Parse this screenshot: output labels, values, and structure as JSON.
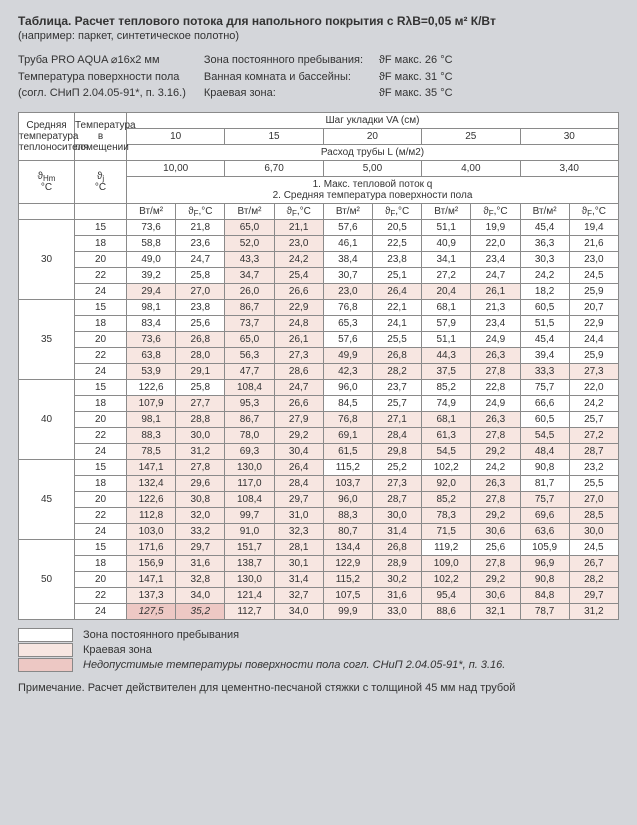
{
  "title": "Таблица.   Расчет теплового потока  для напольного покрытия с RλB=0,05 м² К/Вт",
  "subtitle": "(например: паркет, синтетическое полотно)",
  "specs_left": [
    "Труба PRO AQUA ⌀16x2 мм",
    "Температура поверхности пола",
    "(согл. СНиП 2.04.05-91*, п. 3.16.)"
  ],
  "zones": [
    {
      "label": "Зона постоянного пребывания:",
      "value": "ϑF  макс. 26 °C"
    },
    {
      "label": "Ванная комната и бассейны:",
      "value": "ϑF  макс. 31 °C"
    },
    {
      "label": "Краевая зона:",
      "value": "ϑF  макс. 35 °C"
    }
  ],
  "header": {
    "col_a": "Средняя температура теплоносителя",
    "col_b": "Температура в помещении",
    "pitch_title": "Шаг укладки VA (см)",
    "pitches": [
      "10",
      "15",
      "20",
      "25",
      "30"
    ],
    "flow_title": "Расход трубы L (м/м2)",
    "flows": [
      "10,00",
      "6,70",
      "5,00",
      "4,00",
      "3,40"
    ],
    "mid_text": "1. Макс. тепловой поток q\n2. Средняя температура поверхности пола",
    "sym_a": "ϑHm °C",
    "sym_b": "ϑj °C",
    "unit_a": "Вт/м²",
    "unit_b": "ϑF,°C"
  },
  "thm": [
    "30",
    "35",
    "40",
    "45",
    "50"
  ],
  "ti": [
    "15",
    "18",
    "20",
    "22",
    "24"
  ],
  "rows": [
    [
      [
        "73,6",
        "21,8",
        "ok"
      ],
      [
        "65,0",
        "21,1",
        "kz"
      ],
      [
        "57,6",
        "20,5",
        "ok"
      ],
      [
        "51,1",
        "19,9",
        "ok"
      ],
      [
        "45,4",
        "19,4",
        "ok"
      ]
    ],
    [
      [
        "58,8",
        "23,6",
        "ok"
      ],
      [
        "52,0",
        "23,0",
        "kz"
      ],
      [
        "46,1",
        "22,5",
        "ok"
      ],
      [
        "40,9",
        "22,0",
        "ok"
      ],
      [
        "36,3",
        "21,6",
        "ok"
      ]
    ],
    [
      [
        "49,0",
        "24,7",
        "ok"
      ],
      [
        "43,3",
        "24,2",
        "kz"
      ],
      [
        "38,4",
        "23,8",
        "ok"
      ],
      [
        "34,1",
        "23,4",
        "ok"
      ],
      [
        "30,3",
        "23,0",
        "ok"
      ]
    ],
    [
      [
        "39,2",
        "25,8",
        "ok"
      ],
      [
        "34,7",
        "25,4",
        "kz"
      ],
      [
        "30,7",
        "25,1",
        "ok"
      ],
      [
        "27,2",
        "24,7",
        "ok"
      ],
      [
        "24,2",
        "24,5",
        "ok"
      ]
    ],
    [
      [
        "29,4",
        "27,0",
        "kz"
      ],
      [
        "26,0",
        "26,6",
        "kz"
      ],
      [
        "23,0",
        "26,4",
        "kz"
      ],
      [
        "20,4",
        "26,1",
        "kz"
      ],
      [
        "18,2",
        "25,9",
        "ok"
      ]
    ],
    [
      [
        "98,1",
        "23,8",
        "ok"
      ],
      [
        "86,7",
        "22,9",
        "kz"
      ],
      [
        "76,8",
        "22,1",
        "ok"
      ],
      [
        "68,1",
        "21,3",
        "ok"
      ],
      [
        "60,5",
        "20,7",
        "ok"
      ]
    ],
    [
      [
        "83,4",
        "25,6",
        "ok"
      ],
      [
        "73,7",
        "24,8",
        "kz"
      ],
      [
        "65,3",
        "24,1",
        "ok"
      ],
      [
        "57,9",
        "23,4",
        "ok"
      ],
      [
        "51,5",
        "22,9",
        "ok"
      ]
    ],
    [
      [
        "73,6",
        "26,8",
        "kz"
      ],
      [
        "65,0",
        "26,1",
        "kz"
      ],
      [
        "57,6",
        "25,5",
        "ok"
      ],
      [
        "51,1",
        "24,9",
        "ok"
      ],
      [
        "45,4",
        "24,4",
        "ok"
      ]
    ],
    [
      [
        "63,8",
        "28,0",
        "kz"
      ],
      [
        "56,3",
        "27,3",
        "kz"
      ],
      [
        "49,9",
        "26,8",
        "kz"
      ],
      [
        "44,3",
        "26,3",
        "kz"
      ],
      [
        "39,4",
        "25,9",
        "ok"
      ]
    ],
    [
      [
        "53,9",
        "29,1",
        "kz"
      ],
      [
        "47,7",
        "28,6",
        "kz"
      ],
      [
        "42,3",
        "28,2",
        "kz"
      ],
      [
        "37,5",
        "27,8",
        "kz"
      ],
      [
        "33,3",
        "27,3",
        "kz"
      ]
    ],
    [
      [
        "122,6",
        "25,8",
        "ok"
      ],
      [
        "108,4",
        "24,7",
        "kz"
      ],
      [
        "96,0",
        "23,7",
        "ok"
      ],
      [
        "85,2",
        "22,8",
        "ok"
      ],
      [
        "75,7",
        "22,0",
        "ok"
      ]
    ],
    [
      [
        "107,9",
        "27,7",
        "kz"
      ],
      [
        "95,3",
        "26,6",
        "kz"
      ],
      [
        "84,5",
        "25,7",
        "ok"
      ],
      [
        "74,9",
        "24,9",
        "ok"
      ],
      [
        "66,6",
        "24,2",
        "ok"
      ]
    ],
    [
      [
        "98,1",
        "28,8",
        "kz"
      ],
      [
        "86,7",
        "27,9",
        "kz"
      ],
      [
        "76,8",
        "27,1",
        "kz"
      ],
      [
        "68,1",
        "26,3",
        "kz"
      ],
      [
        "60,5",
        "25,7",
        "ok"
      ]
    ],
    [
      [
        "88,3",
        "30,0",
        "kz"
      ],
      [
        "78,0",
        "29,2",
        "kz"
      ],
      [
        "69,1",
        "28,4",
        "kz"
      ],
      [
        "61,3",
        "27,8",
        "kz"
      ],
      [
        "54,5",
        "27,2",
        "kz"
      ]
    ],
    [
      [
        "78,5",
        "31,2",
        "kz"
      ],
      [
        "69,3",
        "30,4",
        "kz"
      ],
      [
        "61,5",
        "29,8",
        "kz"
      ],
      [
        "54,5",
        "29,2",
        "kz"
      ],
      [
        "48,4",
        "28,7",
        "kz"
      ]
    ],
    [
      [
        "147,1",
        "27,8",
        "kz"
      ],
      [
        "130,0",
        "26,4",
        "kz"
      ],
      [
        "115,2",
        "25,2",
        "ok"
      ],
      [
        "102,2",
        "24,2",
        "ok"
      ],
      [
        "90,8",
        "23,2",
        "ok"
      ]
    ],
    [
      [
        "132,4",
        "29,6",
        "kz"
      ],
      [
        "117,0",
        "28,4",
        "kz"
      ],
      [
        "103,7",
        "27,3",
        "kz"
      ],
      [
        "92,0",
        "26,3",
        "kz"
      ],
      [
        "81,7",
        "25,5",
        "ok"
      ]
    ],
    [
      [
        "122,6",
        "30,8",
        "kz"
      ],
      [
        "108,4",
        "29,7",
        "kz"
      ],
      [
        "96,0",
        "28,7",
        "kz"
      ],
      [
        "85,2",
        "27,8",
        "kz"
      ],
      [
        "75,7",
        "27,0",
        "kz"
      ]
    ],
    [
      [
        "112,8",
        "32,0",
        "kz"
      ],
      [
        "99,7",
        "31,0",
        "kz"
      ],
      [
        "88,3",
        "30,0",
        "kz"
      ],
      [
        "78,3",
        "29,2",
        "kz"
      ],
      [
        "69,6",
        "28,5",
        "kz"
      ]
    ],
    [
      [
        "103,0",
        "33,2",
        "kz"
      ],
      [
        "91,0",
        "32,3",
        "kz"
      ],
      [
        "80,7",
        "31,4",
        "kz"
      ],
      [
        "71,5",
        "30,6",
        "kz"
      ],
      [
        "63,6",
        "30,0",
        "kz"
      ]
    ],
    [
      [
        "171,6",
        "29,7",
        "kz"
      ],
      [
        "151,7",
        "28,1",
        "kz"
      ],
      [
        "134,4",
        "26,8",
        "kz"
      ],
      [
        "119,2",
        "25,6",
        "ok"
      ],
      [
        "105,9",
        "24,5",
        "ok"
      ]
    ],
    [
      [
        "156,9",
        "31,6",
        "kz"
      ],
      [
        "138,7",
        "30,1",
        "kz"
      ],
      [
        "122,9",
        "28,9",
        "kz"
      ],
      [
        "109,0",
        "27,8",
        "kz"
      ],
      [
        "96,9",
        "26,7",
        "kz"
      ]
    ],
    [
      [
        "147,1",
        "32,8",
        "kz"
      ],
      [
        "130,0",
        "31,4",
        "kz"
      ],
      [
        "115,2",
        "30,2",
        "kz"
      ],
      [
        "102,2",
        "29,2",
        "kz"
      ],
      [
        "90,8",
        "28,2",
        "kz"
      ]
    ],
    [
      [
        "137,3",
        "34,0",
        "kz"
      ],
      [
        "121,4",
        "32,7",
        "kz"
      ],
      [
        "107,5",
        "31,6",
        "kz"
      ],
      [
        "95,4",
        "30,6",
        "kz"
      ],
      [
        "84,8",
        "29,7",
        "kz"
      ]
    ],
    [
      [
        "127,5",
        "35,2",
        "bad"
      ],
      [
        "112,7",
        "34,0",
        "kz"
      ],
      [
        "99,9",
        "33,0",
        "kz"
      ],
      [
        "88,6",
        "32,1",
        "kz"
      ],
      [
        "78,7",
        "31,2",
        "kz"
      ]
    ]
  ],
  "legend": {
    "ok": "Зона постоянного пребывания",
    "kz": "Краевая зона",
    "bad": "Недопустимые температуры поверхности пола согл. СНиП 2.04.05-91*, п. 3.16."
  },
  "footnote": "Примечание. Расчет действителен для цементно-песчаной стяжки с толщиной 45 мм над трубой"
}
